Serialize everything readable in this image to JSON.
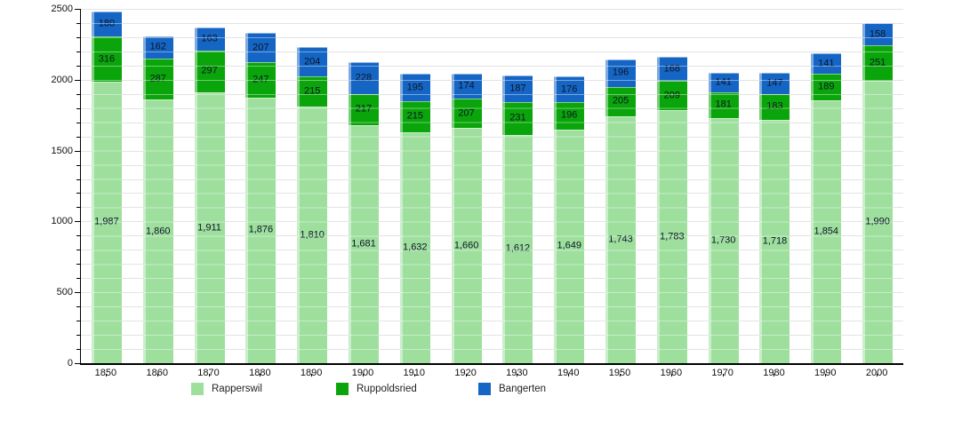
{
  "chart_data": {
    "type": "bar",
    "stacked": true,
    "title": "",
    "xlabel": "",
    "ylabel": "",
    "categories": [
      "1850",
      "1860",
      "1870",
      "1880",
      "1890",
      "1900",
      "1910",
      "1920",
      "1930",
      "1940",
      "1950",
      "1960",
      "1970",
      "1980",
      "1990",
      "2000"
    ],
    "series": [
      {
        "name": "Rapperswil",
        "color": "#9edf9e",
        "values": [
          1987,
          1860,
          1911,
          1876,
          1810,
          1681,
          1632,
          1660,
          1612,
          1649,
          1743,
          1783,
          1730,
          1718,
          1854,
          1990
        ],
        "value_labels": [
          "1,987",
          "1,860",
          "1,911",
          "1,876",
          "1,810",
          "1,681",
          "1,632",
          "1,660",
          "1,612",
          "1,649",
          "1,743",
          "1,783",
          "1,730",
          "1,718",
          "1,854",
          "1,990"
        ]
      },
      {
        "name": "Ruppoldsried",
        "color": "#0aa50a",
        "values": [
          316,
          287,
          297,
          247,
          215,
          217,
          215,
          207,
          231,
          196,
          205,
          209,
          181,
          183,
          189,
          251
        ],
        "value_labels": [
          "316",
          "287",
          "297",
          "247",
          "215",
          "217",
          "215",
          "207",
          "231",
          "196",
          "205",
          "209",
          "181",
          "183",
          "189",
          "251"
        ]
      },
      {
        "name": "Bangerten",
        "color": "#1565c4",
        "values": [
          180,
          162,
          163,
          207,
          204,
          228,
          195,
          174,
          187,
          176,
          196,
          168,
          141,
          147,
          141,
          158
        ],
        "value_labels": [
          "180",
          "162",
          "163",
          "207",
          "204",
          "228",
          "195",
          "174",
          "187",
          "176",
          "196",
          "168",
          "141",
          "147",
          "141",
          "158"
        ]
      }
    ],
    "ylim": [
      0,
      2500
    ],
    "yticks_major": [
      0,
      500,
      1000,
      1500,
      2000,
      2500
    ],
    "ytick_labels": [
      "0",
      "500",
      "1000",
      "1500",
      "2000",
      "2500"
    ],
    "ytick_step_minor": 100,
    "grid": "horizontal, minor every 100, light gray",
    "legend_position": "bottom",
    "value_label_placement": "inside segment center"
  },
  "colors": {
    "background": "#ffffff",
    "axis": "#000000",
    "gridline": "#e3e3e3",
    "value_text": "#0d1526"
  },
  "legend_x_positions": [
    215,
    378,
    538
  ]
}
